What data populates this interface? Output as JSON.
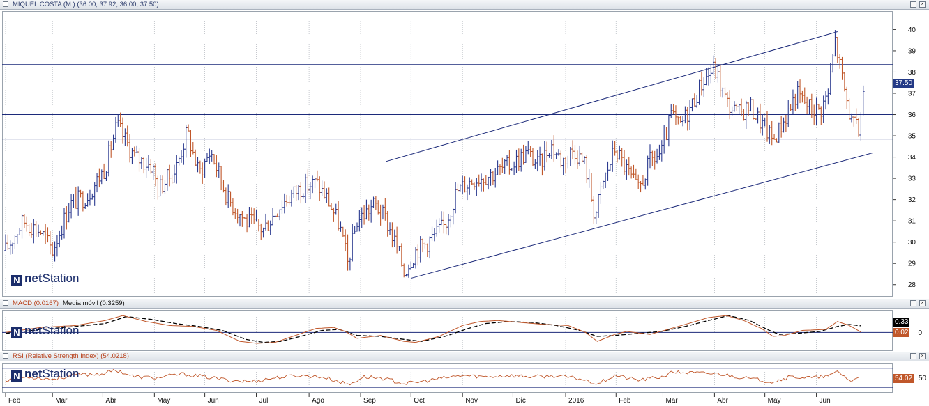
{
  "price_panel": {
    "title": "MIQUEL COSTA (M )",
    "ohlc": "(36.00, 37.92, 36.00, 37.50)",
    "last_label": "37.50"
  },
  "macd_panel": {
    "title": "MACD (0.0167)",
    "avg_title": "Media móvil (0.3259)",
    "signal_label": "0.33",
    "macd_label": "0.02",
    "zero_label": "0"
  },
  "rsi_panel": {
    "title": "RSI (Relative Strength Index) (54.0218)",
    "value_label": "54.02",
    "level_label": "50"
  },
  "logo": {
    "prefix": "net",
    "suffix": "Station",
    "mark": "N"
  },
  "colors": {
    "up": "#2b3a8f",
    "down": "#c0572a",
    "line": "#1c2a7a",
    "macd": "#c0572a",
    "signal": "#000000"
  },
  "chart_data": [
    {
      "type": "bar",
      "subtype": "ohlc",
      "ylim": [
        27.5,
        40.8
      ],
      "yticks": [
        28,
        29,
        30,
        31,
        32,
        33,
        34,
        35,
        36,
        37,
        38,
        39,
        40
      ],
      "months": [
        {
          "label": "Feb",
          "week": 0
        },
        {
          "label": "Mar",
          "week": 4
        },
        {
          "label": "Abr",
          "week": 8.3
        },
        {
          "label": "May",
          "week": 12.7
        },
        {
          "label": "Jun",
          "week": 17
        },
        {
          "label": "Jul",
          "week": 21.4
        },
        {
          "label": "Ago",
          "week": 25.9
        },
        {
          "label": "Sep",
          "week": 30.3
        },
        {
          "label": "Oct",
          "week": 34.6
        },
        {
          "label": "Nov",
          "week": 39
        },
        {
          "label": "Dic",
          "week": 43.3
        },
        {
          "label": "2016",
          "week": 47.8
        },
        {
          "label": "Feb",
          "week": 52.1
        },
        {
          "label": "Mar",
          "week": 56.1
        },
        {
          "label": "Abr",
          "week": 60.5
        },
        {
          "label": "May",
          "week": 64.8
        },
        {
          "label": "Jun",
          "week": 69.2
        }
      ],
      "close_path": [
        [
          0,
          29.6
        ],
        [
          1.5,
          31.0
        ],
        [
          3,
          30.5
        ],
        [
          4,
          29.6
        ],
        [
          5.5,
          31.8
        ],
        [
          7,
          32.2
        ],
        [
          8.5,
          33.5
        ],
        [
          9.5,
          35.5
        ],
        [
          11,
          34.0
        ],
        [
          12.5,
          33.6
        ],
        [
          13,
          32.5
        ],
        [
          14.5,
          33.4
        ],
        [
          15.5,
          35.2
        ],
        [
          16.5,
          33.2
        ],
        [
          17.5,
          34.3
        ],
        [
          19,
          32.0
        ],
        [
          20.5,
          31.0
        ],
        [
          22,
          30.6
        ],
        [
          23.5,
          31.8
        ],
        [
          25,
          32.5
        ],
        [
          26.5,
          32.8
        ],
        [
          27.5,
          32.0
        ],
        [
          28.5,
          30.8
        ],
        [
          29.2,
          29.0
        ],
        [
          30,
          31.0
        ],
        [
          31.5,
          31.8
        ],
        [
          32.5,
          31.0
        ],
        [
          33.5,
          29.6
        ],
        [
          34,
          28.6
        ],
        [
          35,
          29.6
        ],
        [
          36,
          30.0
        ],
        [
          37.5,
          30.8
        ],
        [
          38.5,
          32.4
        ],
        [
          40,
          33.0
        ],
        [
          41.5,
          33.2
        ],
        [
          43,
          33.6
        ],
        [
          44.5,
          34.2
        ],
        [
          45.5,
          33.6
        ],
        [
          46.5,
          34.6
        ],
        [
          47.5,
          33.8
        ],
        [
          48.5,
          34.4
        ],
        [
          49.5,
          33.6
        ],
        [
          50.3,
          31.2
        ],
        [
          51,
          32.8
        ],
        [
          52,
          34.4
        ],
        [
          53,
          33.4
        ],
        [
          54,
          32.4
        ],
        [
          55,
          33.8
        ],
        [
          56,
          34.2
        ],
        [
          56.8,
          36.0
        ],
        [
          57.5,
          35.4
        ],
        [
          58.5,
          36.4
        ],
        [
          59.5,
          37.6
        ],
        [
          60.5,
          38.2
        ],
        [
          61.5,
          36.6
        ],
        [
          62.5,
          36.0
        ],
        [
          63.5,
          36.4
        ],
        [
          64.5,
          35.6
        ],
        [
          65.5,
          34.8
        ],
        [
          66.5,
          35.8
        ],
        [
          67.5,
          37.0
        ],
        [
          68.5,
          36.4
        ],
        [
          69.5,
          36.2
        ],
        [
          70.2,
          37.0
        ],
        [
          70.8,
          39.5
        ],
        [
          71.5,
          37.4
        ],
        [
          72.2,
          35.6
        ],
        [
          72.8,
          35.2
        ],
        [
          73.3,
          37.5
        ]
      ],
      "hlines": [
        38.35,
        36.0,
        34.85
      ],
      "channel": {
        "upper": [
          [
            32.5,
            33.8
          ],
          [
            71,
            39.9
          ]
        ],
        "lower": [
          [
            34.6,
            28.3
          ],
          [
            74,
            34.2
          ]
        ]
      },
      "last": 37.5
    },
    {
      "type": "line",
      "name": "MACD",
      "ylim": [
        -0.9,
        1.1
      ],
      "zero": 0,
      "macd_path": [
        [
          0,
          0.0
        ],
        [
          3,
          0.25
        ],
        [
          6,
          0.35
        ],
        [
          8.5,
          0.6
        ],
        [
          10,
          0.85
        ],
        [
          12,
          0.55
        ],
        [
          14,
          0.35
        ],
        [
          16,
          0.3
        ],
        [
          18,
          0.1
        ],
        [
          20,
          -0.45
        ],
        [
          21.5,
          -0.55
        ],
        [
          23,
          -0.5
        ],
        [
          25,
          -0.1
        ],
        [
          26.5,
          0.2
        ],
        [
          28,
          0.25
        ],
        [
          29,
          0.05
        ],
        [
          30,
          -0.3
        ],
        [
          32,
          -0.15
        ],
        [
          34,
          -0.45
        ],
        [
          35,
          -0.5
        ],
        [
          37,
          -0.2
        ],
        [
          39,
          0.35
        ],
        [
          40.5,
          0.55
        ],
        [
          42,
          0.6
        ],
        [
          44,
          0.5
        ],
        [
          46,
          0.4
        ],
        [
          48,
          0.35
        ],
        [
          49.5,
          0.0
        ],
        [
          50.5,
          -0.45
        ],
        [
          52,
          -0.1
        ],
        [
          53,
          0.05
        ],
        [
          55,
          -0.1
        ],
        [
          56.5,
          0.15
        ],
        [
          58,
          0.4
        ],
        [
          60,
          0.75
        ],
        [
          61.5,
          0.85
        ],
        [
          63,
          0.6
        ],
        [
          64.5,
          0.2
        ],
        [
          65.5,
          -0.2
        ],
        [
          66.5,
          -0.15
        ],
        [
          68,
          0.1
        ],
        [
          70,
          0.15
        ],
        [
          71,
          0.55
        ],
        [
          72,
          0.35
        ],
        [
          73,
          0.02
        ]
      ],
      "signal_path": [
        [
          0,
          -0.05
        ],
        [
          3,
          0.15
        ],
        [
          6,
          0.3
        ],
        [
          8.5,
          0.45
        ],
        [
          10.3,
          0.8
        ],
        [
          12.5,
          0.65
        ],
        [
          14.5,
          0.45
        ],
        [
          16.5,
          0.3
        ],
        [
          18.5,
          0.1
        ],
        [
          20.5,
          -0.35
        ],
        [
          22,
          -0.5
        ],
        [
          23.5,
          -0.45
        ],
        [
          25.5,
          -0.15
        ],
        [
          27,
          0.1
        ],
        [
          28.5,
          0.15
        ],
        [
          30,
          -0.15
        ],
        [
          32,
          -0.2
        ],
        [
          34,
          -0.35
        ],
        [
          35.5,
          -0.45
        ],
        [
          37.5,
          -0.2
        ],
        [
          39.5,
          0.2
        ],
        [
          41,
          0.45
        ],
        [
          43,
          0.55
        ],
        [
          45,
          0.5
        ],
        [
          47,
          0.35
        ],
        [
          49,
          0.1
        ],
        [
          50.5,
          -0.2
        ],
        [
          52,
          -0.15
        ],
        [
          54,
          -0.05
        ],
        [
          56,
          0.05
        ],
        [
          58,
          0.3
        ],
        [
          60,
          0.6
        ],
        [
          61.7,
          0.85
        ],
        [
          63.5,
          0.6
        ],
        [
          65,
          0.15
        ],
        [
          66,
          -0.1
        ],
        [
          67.5,
          -0.05
        ],
        [
          69.5,
          0.05
        ],
        [
          71,
          0.3
        ],
        [
          72,
          0.4
        ],
        [
          73,
          0.33
        ]
      ],
      "signal_last": 0.33,
      "macd_last": 0.02
    },
    {
      "type": "line",
      "name": "RSI",
      "ylim": [
        20,
        80
      ],
      "level": 50,
      "rsi_path": [
        [
          0,
          45
        ],
        [
          2,
          52
        ],
        [
          4,
          47
        ],
        [
          6,
          56
        ],
        [
          8,
          58
        ],
        [
          9.5,
          66
        ],
        [
          11,
          52
        ],
        [
          13,
          50
        ],
        [
          15,
          58
        ],
        [
          17,
          52
        ],
        [
          19,
          45
        ],
        [
          21,
          42
        ],
        [
          23,
          50
        ],
        [
          25,
          55
        ],
        [
          27,
          52
        ],
        [
          28.5,
          42
        ],
        [
          29.3,
          35
        ],
        [
          30.5,
          52
        ],
        [
          32,
          50
        ],
        [
          34,
          38
        ],
        [
          35,
          40
        ],
        [
          37,
          48
        ],
        [
          39,
          55
        ],
        [
          41,
          52
        ],
        [
          43,
          55
        ],
        [
          45,
          52
        ],
        [
          47,
          54
        ],
        [
          49,
          48
        ],
        [
          50.5,
          38
        ],
        [
          52,
          55
        ],
        [
          54,
          45
        ],
        [
          56,
          52
        ],
        [
          57,
          62
        ],
        [
          59,
          60
        ],
        [
          61,
          58
        ],
        [
          62.5,
          52
        ],
        [
          64,
          46
        ],
        [
          65.5,
          42
        ],
        [
          67,
          52
        ],
        [
          69,
          50
        ],
        [
          70.5,
          55
        ],
        [
          71,
          64
        ],
        [
          72.2,
          42
        ],
        [
          73,
          54
        ]
      ],
      "last": 54.02
    }
  ]
}
